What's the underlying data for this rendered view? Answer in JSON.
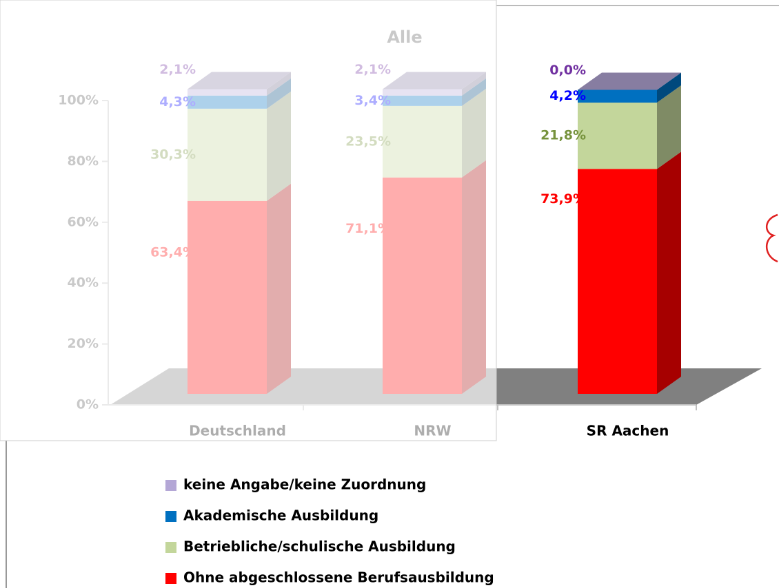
{
  "chart_data": {
    "type": "bar",
    "stacked": true,
    "title": "Alle",
    "categories": [
      "Deutschland",
      "NRW",
      "SR Aachen"
    ],
    "series": [
      {
        "name": "Ohne abgeschlossene Berufsausbildung",
        "color": "#ff0000",
        "label_color": "#ff0000",
        "values": [
          63.4,
          71.1,
          73.9
        ],
        "value_labels": [
          "63,4%",
          "71,1%",
          "73,9%"
        ]
      },
      {
        "name": "Betriebliche/schulische Ausbildung",
        "color": "#c3d69b",
        "label_color": "#76923c",
        "values": [
          30.3,
          23.5,
          21.8
        ],
        "value_labels": [
          "30,3%",
          "23,5%",
          "21,8%"
        ]
      },
      {
        "name": "Akademische Ausbildung",
        "color": "#0070c0",
        "label_color": "#0000ff",
        "values": [
          4.3,
          3.4,
          4.2
        ],
        "value_labels": [
          "4,3%",
          "3,4%",
          "4,2%"
        ]
      },
      {
        "name": "keine Angabe/keine Zuordnung",
        "color": "#b4a7d6",
        "label_color": "#7030a0",
        "values": [
          2.1,
          2.1,
          0.0
        ],
        "value_labels": [
          "2,1%",
          "2,1%",
          "0,0%"
        ]
      }
    ],
    "ylim": [
      0,
      100
    ],
    "yticks": [
      {
        "value": 0,
        "label": "0%"
      },
      {
        "value": 20,
        "label": "20%"
      },
      {
        "value": 40,
        "label": "40%"
      },
      {
        "value": 60,
        "label": "60%"
      },
      {
        "value": 80,
        "label": "80%"
      },
      {
        "value": 100,
        "label": "100%"
      }
    ]
  }
}
